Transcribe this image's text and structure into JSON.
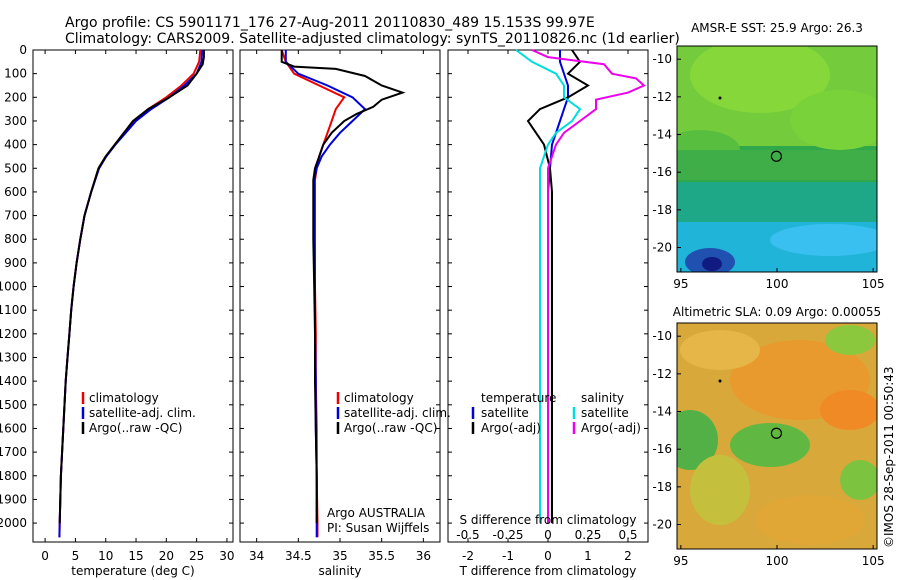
{
  "header": {
    "line1": "Argo profile: CS 5901171_176 27-Aug-2011 20110830_489 15.153S 99.97E",
    "line2": "Climatology: CARS2009. Satellite-adjusted climatology: synTS_20110826.nc (1d earlier)"
  },
  "depth_ticks": [
    "0",
    "100",
    "200",
    "300",
    "400",
    "500",
    "600",
    "700",
    "800",
    "900",
    "1000",
    "1100",
    "1200",
    "1300",
    "1400",
    "1500",
    "1600",
    "1700",
    "1800",
    "1900",
    "2000"
  ],
  "colors": {
    "climatology": "#ee0000",
    "satellite": "#0000dd",
    "argo": "#000000",
    "cyan": "#00dddd",
    "magenta": "#ee00ee"
  },
  "chart_data": [
    {
      "type": "line",
      "xlabel": "temperature (deg C)",
      "xlim": [
        -2,
        31
      ],
      "ylim": [
        2080,
        0
      ],
      "xticks": [
        0,
        5,
        10,
        15,
        20,
        25,
        30
      ],
      "legend": [
        "climatology",
        "satellite-adj. clim.",
        "Argo(..raw -QC)"
      ],
      "series": [
        {
          "name": "climatology",
          "color": "#ee0000",
          "points": [
            [
              25.6,
              0
            ],
            [
              25.4,
              50
            ],
            [
              24.5,
              100
            ],
            [
              22.5,
              150
            ],
            [
              20,
              200
            ],
            [
              17,
              250
            ],
            [
              14.8,
              300
            ],
            [
              13,
              350
            ],
            [
              11.5,
              400
            ],
            [
              10,
              450
            ],
            [
              8.8,
              500
            ],
            [
              7.6,
              600
            ],
            [
              6.5,
              700
            ],
            [
              5.8,
              800
            ],
            [
              5.2,
              900
            ],
            [
              4.7,
              1000
            ],
            [
              4.3,
              1100
            ],
            [
              4,
              1200
            ],
            [
              3.7,
              1300
            ],
            [
              3.4,
              1400
            ],
            [
              3.2,
              1500
            ],
            [
              3,
              1600
            ],
            [
              2.8,
              1700
            ],
            [
              2.6,
              1800
            ],
            [
              2.5,
              1900
            ],
            [
              2.4,
              2000
            ],
            [
              2.35,
              2060
            ]
          ]
        },
        {
          "name": "satellite-adj. clim.",
          "color": "#0000dd",
          "points": [
            [
              25.9,
              0
            ],
            [
              25.8,
              50
            ],
            [
              25,
              100
            ],
            [
              23,
              150
            ],
            [
              20.5,
              200
            ],
            [
              17.5,
              250
            ],
            [
              15,
              300
            ],
            [
              13.3,
              350
            ],
            [
              11.6,
              400
            ],
            [
              10.1,
              450
            ],
            [
              8.9,
              500
            ],
            [
              7.6,
              600
            ],
            [
              6.5,
              700
            ],
            [
              5.8,
              800
            ],
            [
              5.2,
              900
            ],
            [
              4.7,
              1000
            ],
            [
              4.3,
              1100
            ],
            [
              4,
              1200
            ],
            [
              3.7,
              1300
            ],
            [
              3.4,
              1400
            ],
            [
              3.2,
              1500
            ],
            [
              3,
              1600
            ],
            [
              2.8,
              1700
            ],
            [
              2.6,
              1800
            ],
            [
              2.5,
              1900
            ],
            [
              2.4,
              2000
            ],
            [
              2.35,
              2060
            ]
          ]
        },
        {
          "name": "Argo(..raw -QC)",
          "color": "#000000",
          "points": [
            [
              26.2,
              0
            ],
            [
              26.2,
              30
            ],
            [
              26,
              60
            ],
            [
              25,
              100
            ],
            [
              23.5,
              150
            ],
            [
              20.5,
              200
            ],
            [
              17,
              250
            ],
            [
              14.5,
              300
            ],
            [
              13,
              350
            ],
            [
              11.5,
              400
            ],
            [
              10,
              450
            ],
            [
              8.8,
              500
            ],
            [
              7.6,
              600
            ],
            [
              6.5,
              700
            ],
            [
              5.8,
              800
            ],
            [
              5.2,
              900
            ],
            [
              4.7,
              1000
            ],
            [
              4.3,
              1100
            ],
            [
              4,
              1200
            ],
            [
              3.7,
              1300
            ],
            [
              3.4,
              1400
            ],
            [
              3.2,
              1500
            ],
            [
              3,
              1600
            ],
            [
              2.8,
              1700
            ],
            [
              2.6,
              1800
            ],
            [
              2.5,
              1900
            ],
            [
              2.4,
              2000
            ]
          ]
        }
      ]
    },
    {
      "type": "line",
      "xlabel": "salinity",
      "xlim": [
        33.8,
        36.2
      ],
      "ylim": [
        2080,
        0
      ],
      "xticks": [
        34,
        34.5,
        35,
        35.5,
        36
      ],
      "legend": [
        "climatology",
        "satellite-adj. clim.",
        "Argo(..raw -QC)"
      ],
      "annotation": [
        "Argo AUSTRALIA",
        "PI: Susan Wijffels"
      ],
      "series": [
        {
          "name": "climatology",
          "color": "#ee0000",
          "points": [
            [
              34.3,
              0
            ],
            [
              34.35,
              50
            ],
            [
              34.45,
              100
            ],
            [
              34.75,
              150
            ],
            [
              35.05,
              200
            ],
            [
              34.95,
              250
            ],
            [
              34.9,
              300
            ],
            [
              34.85,
              350
            ],
            [
              34.8,
              400
            ],
            [
              34.75,
              450
            ],
            [
              34.72,
              500
            ],
            [
              34.7,
              550
            ],
            [
              34.7,
              600
            ],
            [
              34.7,
              800
            ],
            [
              34.7,
              1000
            ],
            [
              34.71,
              1200
            ],
            [
              34.71,
              1400
            ],
            [
              34.72,
              1600
            ],
            [
              34.72,
              1800
            ],
            [
              34.73,
              2000
            ],
            [
              34.73,
              2060
            ]
          ]
        },
        {
          "name": "satellite-adj. clim.",
          "color": "#0000dd",
          "points": [
            [
              34.35,
              0
            ],
            [
              34.35,
              50
            ],
            [
              34.5,
              100
            ],
            [
              34.85,
              150
            ],
            [
              35.15,
              200
            ],
            [
              35.3,
              250
            ],
            [
              35.15,
              300
            ],
            [
              35,
              350
            ],
            [
              34.88,
              400
            ],
            [
              34.78,
              450
            ],
            [
              34.72,
              500
            ],
            [
              34.69,
              550
            ],
            [
              34.69,
              600
            ],
            [
              34.69,
              800
            ],
            [
              34.7,
              1000
            ],
            [
              34.7,
              1200
            ],
            [
              34.71,
              1400
            ],
            [
              34.71,
              1600
            ],
            [
              34.72,
              1800
            ],
            [
              34.72,
              2000
            ],
            [
              34.72,
              2060
            ]
          ]
        },
        {
          "name": "Argo(..raw -QC)",
          "color": "#000000",
          "points": [
            [
              34.3,
              0
            ],
            [
              34.3,
              50
            ],
            [
              34.45,
              70
            ],
            [
              34.95,
              80
            ],
            [
              35.3,
              110
            ],
            [
              35.5,
              150
            ],
            [
              35.75,
              180
            ],
            [
              35.5,
              210
            ],
            [
              35.4,
              240
            ],
            [
              35.2,
              270
            ],
            [
              35.05,
              300
            ],
            [
              34.9,
              350
            ],
            [
              34.8,
              400
            ],
            [
              34.75,
              450
            ],
            [
              34.7,
              500
            ],
            [
              34.68,
              550
            ],
            [
              34.68,
              600
            ],
            [
              34.68,
              800
            ],
            [
              34.69,
              1000
            ],
            [
              34.7,
              1200
            ],
            [
              34.7,
              1400
            ],
            [
              34.71,
              1600
            ],
            [
              34.72,
              1800
            ],
            [
              34.72,
              2000
            ]
          ]
        }
      ]
    },
    {
      "type": "line",
      "xlabel": "T difference from climatology",
      "xlabel_top": "S difference from climatology",
      "xlim": [
        -2.5,
        2.5
      ],
      "ylim": [
        2080,
        0
      ],
      "xticks": [
        -2,
        -1,
        0,
        1,
        2
      ],
      "xticks_top": [
        -0.5,
        -0.25,
        0,
        0.25,
        0.5
      ],
      "legend": [
        "temperature",
        "satellite",
        "Argo(-adj)",
        "salinity",
        "satellite",
        "Argo(-adj)"
      ],
      "series": [
        {
          "name": "temperature satellite",
          "color": "#0000dd",
          "points": [
            [
              0.3,
              0
            ],
            [
              0.3,
              50
            ],
            [
              0.4,
              100
            ],
            [
              0.5,
              150
            ],
            [
              0.5,
              200
            ],
            [
              0.4,
              250
            ],
            [
              0.3,
              300
            ],
            [
              0.2,
              350
            ],
            [
              0.1,
              400
            ],
            [
              0.05,
              500
            ],
            [
              0,
              600
            ],
            [
              0,
              800
            ],
            [
              0,
              1000
            ],
            [
              0,
              1500
            ],
            [
              0,
              2000
            ]
          ]
        },
        {
          "name": "temperature Argo(-adj)",
          "color": "#000000",
          "points": [
            [
              0.6,
              0
            ],
            [
              0.8,
              50
            ],
            [
              0.5,
              100
            ],
            [
              1,
              150
            ],
            [
              0.5,
              200
            ],
            [
              -0.2,
              250
            ],
            [
              -0.5,
              300
            ],
            [
              -0.3,
              350
            ],
            [
              -0.1,
              400
            ],
            [
              0.05,
              500
            ],
            [
              0.1,
              600
            ],
            [
              0.1,
              800
            ],
            [
              0.1,
              1000
            ],
            [
              0.1,
              1500
            ],
            [
              0.1,
              2000
            ]
          ]
        },
        {
          "name": "salinity satellite",
          "color": "#00dddd",
          "points": [
            [
              -0.2,
              0
            ],
            [
              -0.1,
              50
            ],
            [
              0.05,
              100
            ],
            [
              0.1,
              150
            ],
            [
              0.1,
              200
            ],
            [
              0.2,
              250
            ],
            [
              0.15,
              300
            ],
            [
              0.05,
              350
            ],
            [
              0,
              400
            ],
            [
              -0.05,
              500
            ],
            [
              -0.05,
              600
            ],
            [
              -0.05,
              800
            ],
            [
              -0.05,
              1000
            ],
            [
              -0.05,
              1500
            ],
            [
              -0.05,
              2000
            ]
          ]
        },
        {
          "name": "salinity Argo(-adj)",
          "color": "#ee00ee",
          "points": [
            [
              -0.1,
              0
            ],
            [
              0,
              30
            ],
            [
              0.35,
              60
            ],
            [
              0.4,
              100
            ],
            [
              0.55,
              120
            ],
            [
              0.6,
              150
            ],
            [
              0.5,
              180
            ],
            [
              0.3,
              210
            ],
            [
              0.3,
              250
            ],
            [
              0.2,
              300
            ],
            [
              0.1,
              350
            ],
            [
              0.05,
              400
            ],
            [
              0,
              500
            ],
            [
              0,
              600
            ],
            [
              0,
              1000
            ],
            [
              0,
              1500
            ],
            [
              0,
              2000
            ]
          ]
        }
      ]
    },
    {
      "type": "heatmap",
      "title": "AMSR-E SST: 25.9 Argo: 26.3",
      "xlim": [
        94.8,
        105.2
      ],
      "ylim": [
        -21.3,
        -9.3
      ],
      "xticks": [
        95,
        100,
        105
      ],
      "yticks": [
        -10,
        -12,
        -14,
        -16,
        -18,
        -20
      ],
      "marker": [
        99.97,
        -15.153
      ]
    },
    {
      "type": "heatmap",
      "title": "Altimetric SLA: 0.09 Argo: 0.00055",
      "xlim": [
        94.8,
        105.2
      ],
      "ylim": [
        -21.3,
        -9.3
      ],
      "xticks": [
        95,
        100,
        105
      ],
      "yticks": [
        -10,
        -12,
        -14,
        -16,
        -18,
        -20
      ],
      "marker": [
        99.97,
        -15.153
      ]
    }
  ],
  "footer": {
    "stamp": "©IMOS 28-Sep-2011 00:50:43"
  }
}
